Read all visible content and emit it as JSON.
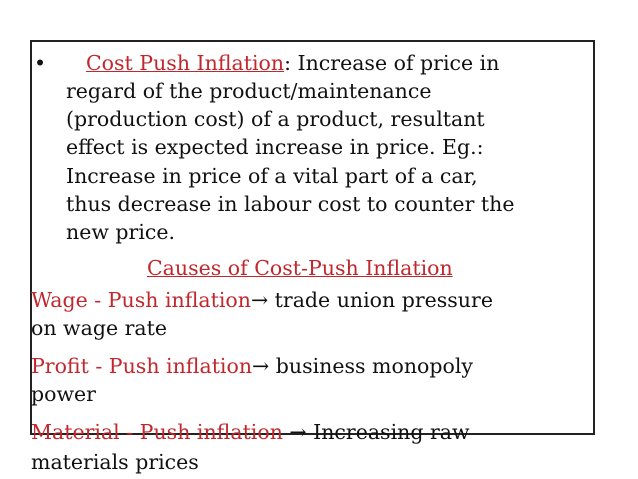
{
  "bullet": {
    "marker": "•",
    "term": "Cost Push Inflation",
    "lines": [
      ": Increase of price in",
      "regard of the product/maintenance",
      "(production cost) of a product, resultant",
      "effect is expected increase in price. Eg.:",
      "Increase in price of a vital part of a car,",
      "thus decrease in labour cost to counter the",
      "new price."
    ]
  },
  "heading": "Causes of Cost-Push Inflation",
  "causes": [
    {
      "term": "Wage - Push inflation",
      "lines": [
        "→ trade union pressure",
        "on wage rate"
      ]
    },
    {
      "term": "Profit - Push inflation",
      "lines": [
        "→ business monopoly",
        "power"
      ]
    },
    {
      "term": "Material - Push inflation",
      "lines": [
        " → Increasing raw",
        "materials prices"
      ]
    }
  ]
}
